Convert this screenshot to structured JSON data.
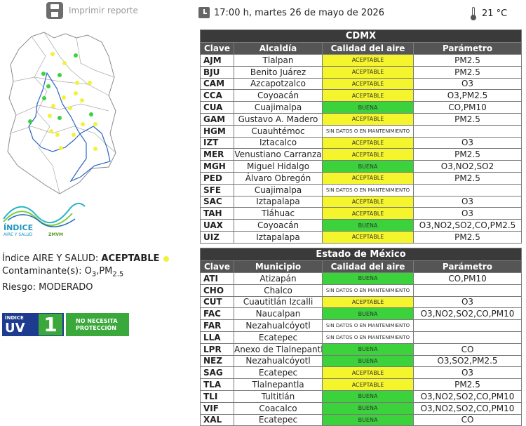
{
  "toolbar": {
    "print_label": "Imprimir reporte"
  },
  "header": {
    "datetime": "17:00 h, martes 26 de mayo de 2026",
    "temperature": "21 °C"
  },
  "aire_salud": {
    "label": "Índice AIRE Y SALUD: ",
    "value": "ACEPTABLE",
    "contaminantes_label": "Contaminante(s): ",
    "contaminantes_o3": "O",
    "contaminantes_o3_sub": "3",
    "contaminantes_pm": ",PM",
    "contaminantes_pm_sub": "2.5",
    "riesgo": "Riesgo: MODERADO"
  },
  "uv": {
    "label_top": "ÍNDICE",
    "label_uv": "UV",
    "value": "1",
    "message": "NO NECESITA PROTECCIÓN"
  },
  "logo": {
    "line1": "ÍNDICE",
    "line2": "AIRE Y SALUD",
    "line3": "ZMVM"
  },
  "cdmx": {
    "title": "CDMX",
    "headers": [
      "Clave",
      "Alcaldía",
      "Calidad del aire",
      "Parámetro"
    ],
    "rows": [
      {
        "clave": "AJM",
        "name": "Tlalpan",
        "calidad": "ACEPTABLE",
        "status": "aceptable",
        "param": "PM2.5"
      },
      {
        "clave": "BJU",
        "name": "Benito Juárez",
        "calidad": "ACEPTABLE",
        "status": "aceptable",
        "param": "PM2.5"
      },
      {
        "clave": "CAM",
        "name": "Azcapotzalco",
        "calidad": "ACEPTABLE",
        "status": "aceptable",
        "param": "O3"
      },
      {
        "clave": "CCA",
        "name": "Coyoacán",
        "calidad": "ACEPTABLE",
        "status": "aceptable",
        "param": "O3,PM2.5"
      },
      {
        "clave": "CUA",
        "name": "Cuajimalpa",
        "calidad": "BUENA",
        "status": "buena",
        "param": "CO,PM10"
      },
      {
        "clave": "GAM",
        "name": "Gustavo A. Madero",
        "calidad": "ACEPTABLE",
        "status": "aceptable",
        "param": "PM2.5"
      },
      {
        "clave": "HGM",
        "name": "Cuauhtémoc",
        "calidad": "SIN DATOS O EN MANTENIMIENTO",
        "status": "sin",
        "param": ""
      },
      {
        "clave": "IZT",
        "name": "Iztacalco",
        "calidad": "ACEPTABLE",
        "status": "aceptable",
        "param": "O3"
      },
      {
        "clave": "MER",
        "name": "Venustiano Carranza",
        "calidad": "ACEPTABLE",
        "status": "aceptable",
        "param": "PM2.5"
      },
      {
        "clave": "MGH",
        "name": "Miguel Hidalgo",
        "calidad": "BUENA",
        "status": "buena",
        "param": "O3,NO2,SO2"
      },
      {
        "clave": "PED",
        "name": "Álvaro Obregón",
        "calidad": "ACEPTABLE",
        "status": "aceptable",
        "param": "PM2.5"
      },
      {
        "clave": "SFE",
        "name": "Cuajimalpa",
        "calidad": "SIN DATOS O EN MANTENIMIENTO",
        "status": "sin",
        "param": ""
      },
      {
        "clave": "SAC",
        "name": "Iztapalapa",
        "calidad": "ACEPTABLE",
        "status": "aceptable",
        "param": "O3"
      },
      {
        "clave": "TAH",
        "name": "Tláhuac",
        "calidad": "ACEPTABLE",
        "status": "aceptable",
        "param": "O3"
      },
      {
        "clave": "UAX",
        "name": "Coyoacán",
        "calidad": "BUENA",
        "status": "buena",
        "param": "O3,NO2,SO2,CO,PM2.5"
      },
      {
        "clave": "UIZ",
        "name": "Iztapalapa",
        "calidad": "ACEPTABLE",
        "status": "aceptable",
        "param": "PM2.5"
      }
    ]
  },
  "edomex": {
    "title": "Estado de México",
    "headers": [
      "Clave",
      "Municipio",
      "Calidad del aire",
      "Parámetro"
    ],
    "rows": [
      {
        "clave": "ATI",
        "name": "Atizapán",
        "calidad": "BUENA",
        "status": "buena",
        "param": "CO,PM10"
      },
      {
        "clave": "CHO",
        "name": "Chalco",
        "calidad": "SIN DATOS O EN MANTENIMIENTO",
        "status": "sin",
        "param": ""
      },
      {
        "clave": "CUT",
        "name": "Cuautitlán Izcalli",
        "calidad": "ACEPTABLE",
        "status": "aceptable",
        "param": "O3"
      },
      {
        "clave": "FAC",
        "name": "Naucalpan",
        "calidad": "BUENA",
        "status": "buena",
        "param": "O3,NO2,SO2,CO,PM10"
      },
      {
        "clave": "FAR",
        "name": "Nezahualcóyotl",
        "calidad": "SIN DATOS O EN MANTENIMIENTO",
        "status": "sin",
        "param": ""
      },
      {
        "clave": "LLA",
        "name": "Ecatepec",
        "calidad": "SIN DATOS O EN MANTENIMIENTO",
        "status": "sin",
        "param": ""
      },
      {
        "clave": "LPR",
        "name": "Anexo de Tlalnepantla",
        "calidad": "BUENA",
        "status": "buena",
        "param": "CO"
      },
      {
        "clave": "NEZ",
        "name": "Nezahualcóyotl",
        "calidad": "BUENA",
        "status": "buena",
        "param": "O3,SO2,PM2.5"
      },
      {
        "clave": "SAG",
        "name": "Ecatepec",
        "calidad": "ACEPTABLE",
        "status": "aceptable",
        "param": "O3"
      },
      {
        "clave": "TLA",
        "name": "Tlalnepantla",
        "calidad": "ACEPTABLE",
        "status": "aceptable",
        "param": "PM2.5"
      },
      {
        "clave": "TLI",
        "name": "Tultitlán",
        "calidad": "BUENA",
        "status": "buena",
        "param": "O3,NO2,SO2,CO,PM10"
      },
      {
        "clave": "VIF",
        "name": "Coacalco",
        "calidad": "BUENA",
        "status": "buena",
        "param": "O3,NO2,SO2,CO,PM10"
      },
      {
        "clave": "XAL",
        "name": "Ecatepec",
        "calidad": "BUENA",
        "status": "buena",
        "param": "CO"
      }
    ]
  },
  "colors": {
    "aceptable": "#f5f52d",
    "buena": "#3bd23b",
    "header": "#3a3a3a"
  }
}
